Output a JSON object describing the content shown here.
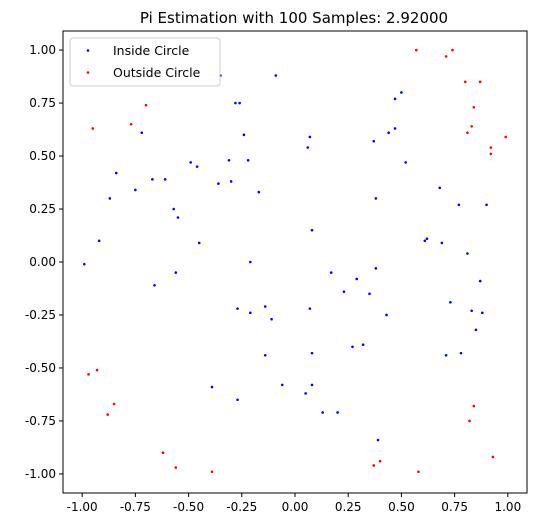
{
  "chart_data": {
    "type": "scatter",
    "title": "Pi Estimation with 100 Samples: 2.92000",
    "xlabel": "",
    "ylabel": "",
    "xlim": [
      -1.09,
      1.09
    ],
    "ylim": [
      -1.09,
      1.09
    ],
    "x_ticks": [
      "-1.00",
      "-0.75",
      "-0.50",
      "-0.25",
      "0.00",
      "0.25",
      "0.50",
      "0.75",
      "1.00"
    ],
    "y_ticks": [
      "1.00",
      "0.75",
      "0.50",
      "0.25",
      "0.00",
      "-0.25",
      "-0.50",
      "-0.75",
      "-1.00"
    ],
    "grid": false,
    "legend_position": "top-left",
    "series": [
      {
        "name": "Inside Circle",
        "color": "#0000ff",
        "points": [
          [
            -0.99,
            -0.01
          ],
          [
            -0.92,
            0.1
          ],
          [
            -0.87,
            0.3
          ],
          [
            -0.84,
            0.42
          ],
          [
            -0.75,
            0.34
          ],
          [
            -0.72,
            0.61
          ],
          [
            -0.67,
            0.39
          ],
          [
            -0.66,
            -0.11
          ],
          [
            -0.61,
            0.39
          ],
          [
            -0.57,
            0.25
          ],
          [
            -0.56,
            -0.05
          ],
          [
            -0.55,
            0.21
          ],
          [
            -0.49,
            0.47
          ],
          [
            -0.46,
            0.45
          ],
          [
            -0.45,
            0.09
          ],
          [
            -0.39,
            -0.59
          ],
          [
            -0.36,
            0.37
          ],
          [
            -0.35,
            0.88
          ],
          [
            -0.31,
            0.48
          ],
          [
            -0.3,
            0.38
          ],
          [
            -0.28,
            0.75
          ],
          [
            -0.27,
            -0.22
          ],
          [
            -0.27,
            -0.65
          ],
          [
            -0.26,
            0.75
          ],
          [
            -0.24,
            0.6
          ],
          [
            -0.22,
            0.48
          ],
          [
            -0.21,
            0.0
          ],
          [
            -0.21,
            -0.24
          ],
          [
            -0.17,
            0.33
          ],
          [
            -0.14,
            -0.21
          ],
          [
            -0.14,
            -0.44
          ],
          [
            -0.11,
            -0.27
          ],
          [
            -0.09,
            0.88
          ],
          [
            -0.06,
            -0.58
          ],
          [
            0.05,
            -0.62
          ],
          [
            0.06,
            0.54
          ],
          [
            0.07,
            0.59
          ],
          [
            0.07,
            -0.22
          ],
          [
            0.08,
            0.15
          ],
          [
            0.08,
            -0.43
          ],
          [
            0.08,
            -0.58
          ],
          [
            0.13,
            -0.71
          ],
          [
            0.17,
            -0.05
          ],
          [
            0.2,
            -0.71
          ],
          [
            0.23,
            -0.14
          ],
          [
            0.27,
            -0.4
          ],
          [
            0.29,
            -0.08
          ],
          [
            0.32,
            -0.39
          ],
          [
            0.35,
            -0.15
          ],
          [
            0.37,
            0.57
          ],
          [
            0.38,
            -0.03
          ],
          [
            0.38,
            0.3
          ],
          [
            0.39,
            -0.84
          ],
          [
            0.43,
            -0.25
          ],
          [
            0.44,
            0.61
          ],
          [
            0.47,
            0.77
          ],
          [
            0.47,
            0.63
          ],
          [
            0.5,
            0.8
          ],
          [
            0.52,
            0.47
          ],
          [
            0.61,
            0.1
          ],
          [
            0.62,
            0.11
          ],
          [
            0.68,
            0.35
          ],
          [
            0.69,
            0.09
          ],
          [
            0.71,
            -0.44
          ],
          [
            0.73,
            -0.19
          ],
          [
            0.77,
            0.27
          ],
          [
            0.78,
            -0.43
          ],
          [
            0.81,
            0.04
          ],
          [
            0.83,
            -0.23
          ],
          [
            0.85,
            -0.32
          ],
          [
            0.87,
            -0.09
          ],
          [
            0.88,
            -0.24
          ],
          [
            0.9,
            0.27
          ]
        ]
      },
      {
        "name": "Outside Circle",
        "color": "#ff0000",
        "points": [
          [
            -0.97,
            -0.53
          ],
          [
            -0.95,
            0.63
          ],
          [
            -0.93,
            -0.51
          ],
          [
            -0.88,
            -0.72
          ],
          [
            -0.85,
            -0.67
          ],
          [
            -0.77,
            0.65
          ],
          [
            -0.7,
            0.74
          ],
          [
            -0.62,
            -0.9
          ],
          [
            -0.56,
            -0.97
          ],
          [
            -0.39,
            -0.99
          ],
          [
            0.37,
            -0.96
          ],
          [
            0.4,
            -0.94
          ],
          [
            0.57,
            1.0
          ],
          [
            0.58,
            -0.99
          ],
          [
            0.71,
            0.97
          ],
          [
            0.74,
            1.0
          ],
          [
            0.8,
            0.85
          ],
          [
            0.81,
            0.61
          ],
          [
            0.82,
            -0.75
          ],
          [
            0.83,
            0.64
          ],
          [
            0.84,
            0.73
          ],
          [
            0.84,
            -0.68
          ],
          [
            0.87,
            0.85
          ],
          [
            0.92,
            0.54
          ],
          [
            0.92,
            0.51
          ],
          [
            0.93,
            -0.92
          ],
          [
            0.99,
            0.59
          ]
        ]
      }
    ]
  }
}
